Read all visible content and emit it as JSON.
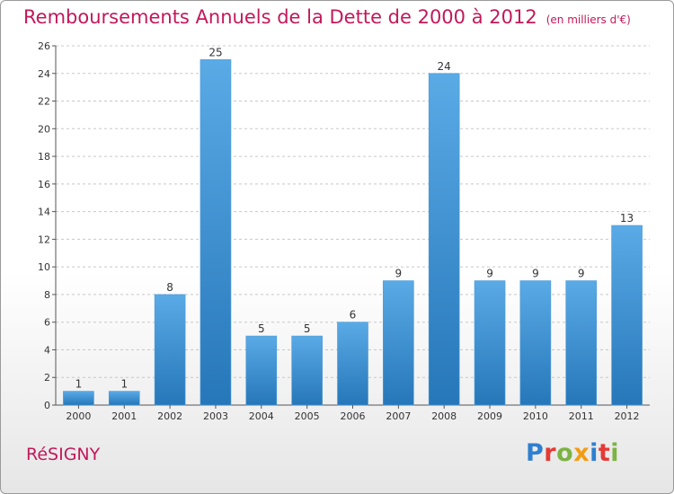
{
  "title": "Remboursements Annuels de la Dette de 2000 à 2012",
  "unit_note": "(en milliers d'€)",
  "commune": "RéSIGNY",
  "logo": {
    "text": "Proxiti",
    "letters": [
      {
        "ch": "P",
        "color": "#2e7fd0"
      },
      {
        "ch": "r",
        "color": "#e53935"
      },
      {
        "ch": "o",
        "color": "#7cb342"
      },
      {
        "ch": "x",
        "color": "#f39c12"
      },
      {
        "ch": "i",
        "color": "#2e7fd0"
      },
      {
        "ch": "t",
        "color": "#e53935"
      },
      {
        "ch": "i",
        "color": "#7cb342"
      }
    ]
  },
  "colors": {
    "accent": "#c2185b",
    "bar_top": "#5aaae6",
    "bar_bottom": "#2677b9",
    "grid": "#c8c8c8",
    "axis": "#555555"
  },
  "chart_data": {
    "type": "bar",
    "title": "Remboursements Annuels de la Dette de 2000 à 2012",
    "categories": [
      "2000",
      "2001",
      "2002",
      "2003",
      "2004",
      "2005",
      "2006",
      "2007",
      "2008",
      "2009",
      "2010",
      "2011",
      "2012"
    ],
    "values": [
      1,
      1,
      8,
      25,
      5,
      5,
      6,
      9,
      24,
      9,
      9,
      9,
      13
    ],
    "ylim": [
      0,
      26
    ],
    "yticks": [
      0,
      2,
      4,
      6,
      8,
      10,
      12,
      14,
      16,
      18,
      20,
      22,
      24,
      26
    ],
    "grid": true,
    "xlabel": "",
    "ylabel": ""
  }
}
